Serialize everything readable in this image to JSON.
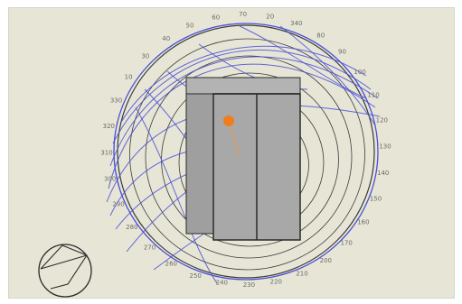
{
  "viewport": {
    "background": "#e7e6d6"
  },
  "sun_chart": {
    "tick_labels": [
      "20",
      "340",
      "80",
      "90",
      "100",
      "110",
      "120",
      "130",
      "140",
      "150",
      "160",
      "170",
      "200",
      "210",
      "220",
      "230",
      "240",
      "250",
      "260",
      "270",
      "280",
      "290",
      "300",
      "310",
      "320",
      "330",
      "10",
      "30",
      "40",
      "50",
      "60",
      "70"
    ]
  },
  "colors": {
    "sunpath": "#4a4fd6",
    "rings": "#3a3a3a",
    "building_fill": "#a7a7a7",
    "building_stroke": "#2a2a2a",
    "sun": "#f07d1a"
  },
  "icons": {
    "compass": "compass-icon",
    "sun": "sun-marker-icon"
  }
}
